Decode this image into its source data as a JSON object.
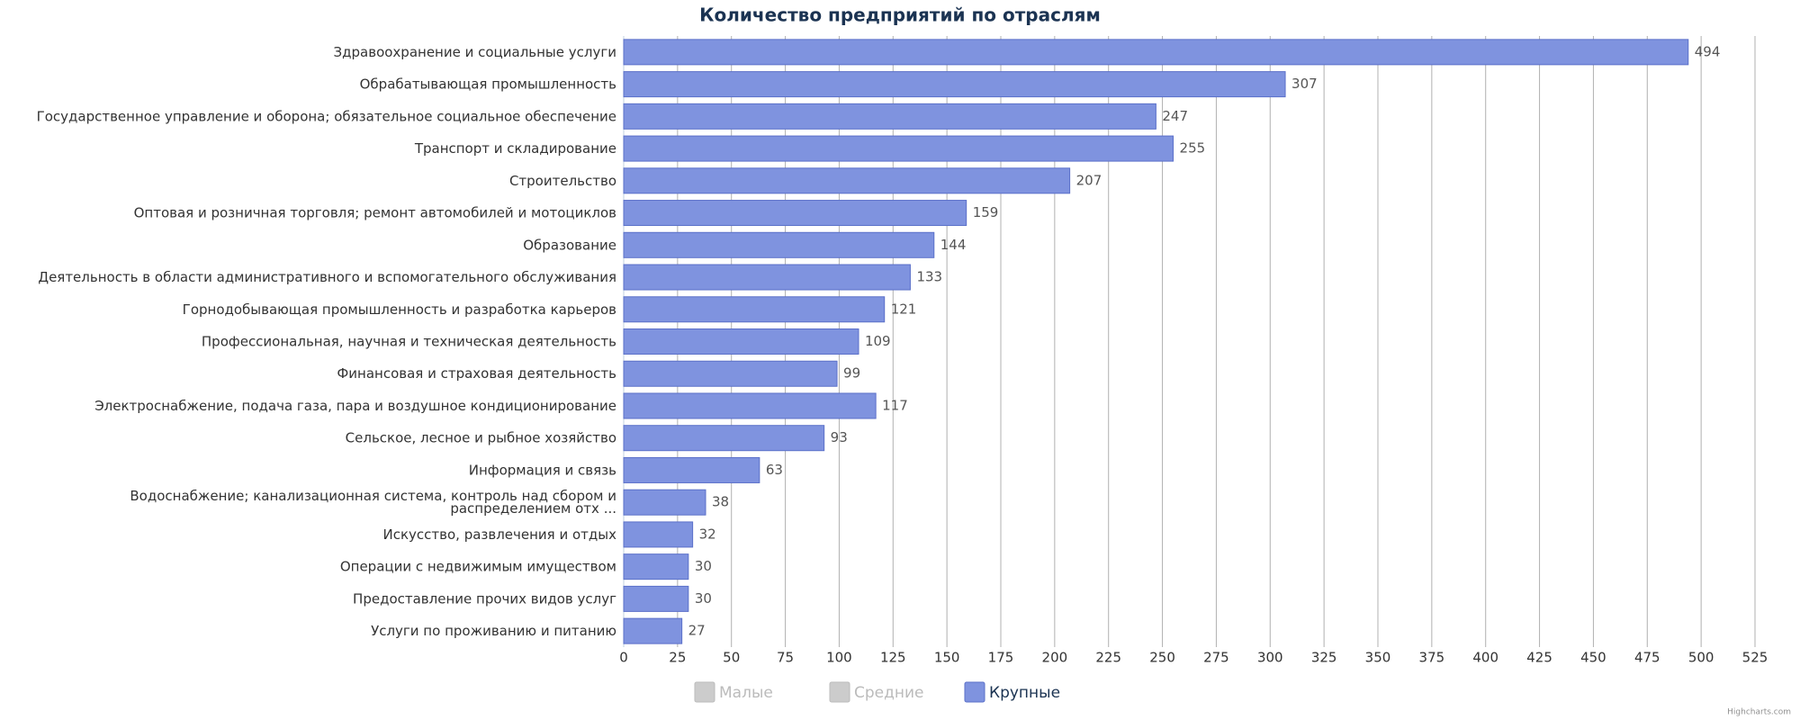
{
  "chart_data": {
    "type": "hbar",
    "title": "Количество предприятий по отраслям",
    "categories": [
      "Здравоохранение и социальные услуги",
      "Обрабатывающая промышленность",
      "Государственное управление и оборона; обязательное социальное обеспечение",
      "Транспорт и складирование",
      "Строительство",
      "Оптовая и розничная торговля; ремонт автомобилей и мотоциклов",
      "Образование",
      "Деятельность в области административного и вспомогательного обслуживания",
      "Горнодобывающая промышленность и разработка карьеров",
      "Профессиональная, научная и техническая деятельность",
      "Финансовая и страховая деятельность",
      "Электроснабжение, подача газа, пара и воздушное кондиционирование",
      "Сельское, лесное и рыбное хозяйство",
      "Информация и связь",
      "Водоснабжение; канализационная система, контроль над сбором и\nраспределением отх ...",
      "Искусство, развлечения и отдых",
      "Операции с недвижимым имуществом",
      "Предоставление прочих видов услуг",
      "Услуги по проживанию и питанию"
    ],
    "series": [
      {
        "name": "Крупные",
        "color": "#7f93df",
        "values": [
          494,
          307,
          247,
          255,
          207,
          159,
          144,
          133,
          121,
          109,
          99,
          117,
          93,
          63,
          38,
          32,
          30,
          30,
          27
        ]
      }
    ],
    "legend_inactive": [
      {
        "name": "Малые",
        "color": "#cccccc"
      },
      {
        "name": "Средние",
        "color": "#cccccc"
      }
    ],
    "xlim": [
      0,
      525
    ],
    "xticks": [
      0,
      25,
      50,
      75,
      100,
      125,
      150,
      175,
      200,
      225,
      250,
      275,
      300,
      325,
      350,
      375,
      400,
      425,
      450,
      475,
      500,
      525
    ],
    "grid": true,
    "credit": "Highcharts.com"
  }
}
